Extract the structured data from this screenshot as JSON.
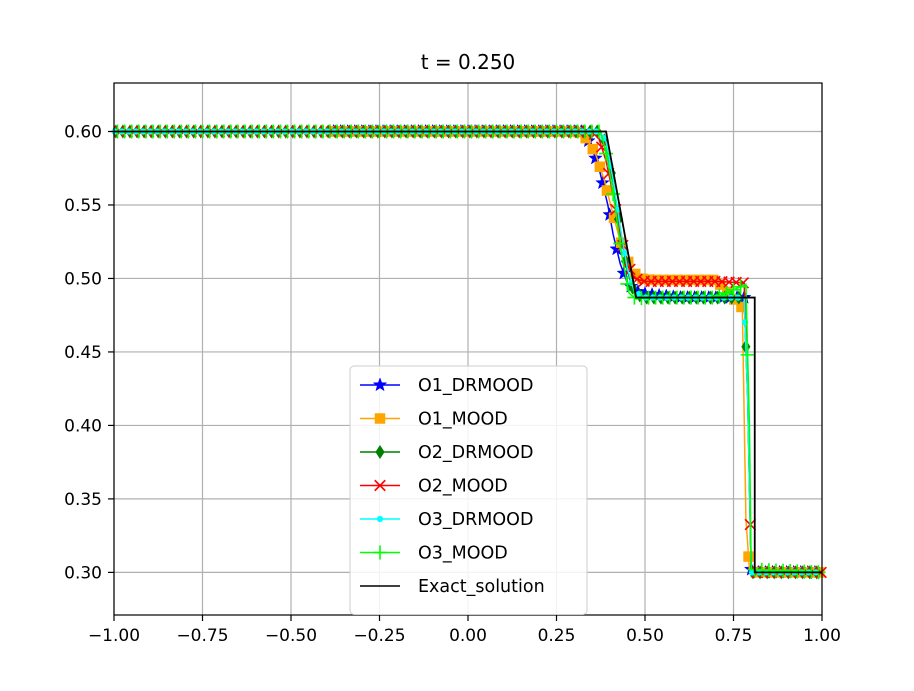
{
  "chart_data": {
    "type": "line",
    "title": "t = 0.250",
    "xlabel": "",
    "ylabel": "",
    "xlim": [
      -1.0,
      1.0
    ],
    "ylim": [
      0.271,
      0.633
    ],
    "xticks": [
      -1.0,
      -0.75,
      -0.5,
      -0.25,
      0.0,
      0.25,
      0.5,
      0.75,
      1.0
    ],
    "xtick_labels": [
      "−1.00",
      "−0.75",
      "−0.50",
      "−0.25",
      "0.00",
      "0.25",
      "0.50",
      "0.75",
      "1.00"
    ],
    "yticks": [
      0.3,
      0.35,
      0.4,
      0.45,
      0.5,
      0.55,
      0.6
    ],
    "ytick_labels": [
      "0.30",
      "0.35",
      "0.40",
      "0.45",
      "0.50",
      "0.55",
      "0.60"
    ],
    "grid": true,
    "legend_position": "lower-center",
    "series": [
      {
        "name": "O1_DRMOOD",
        "color": "#0000ff",
        "marker": "star",
        "x": [
          -0.39,
          0.32,
          0.345,
          0.37,
          0.395,
          0.41,
          0.43,
          0.45,
          0.47,
          0.49,
          0.52,
          0.56,
          0.6,
          0.68,
          0.78,
          0.79,
          0.8,
          0.81,
          1.0
        ],
        "y": [
          0.6,
          0.6,
          0.592,
          0.575,
          0.55,
          0.53,
          0.51,
          0.497,
          0.492,
          0.49,
          0.489,
          0.488,
          0.487,
          0.487,
          0.487,
          0.42,
          0.302,
          0.3,
          0.3
        ]
      },
      {
        "name": "O1_MOOD",
        "color": "#ffa500",
        "marker": "square",
        "x": [
          -0.39,
          0.31,
          0.335,
          0.36,
          0.385,
          0.405,
          0.425,
          0.445,
          0.465,
          0.485,
          0.52,
          0.6,
          0.7,
          0.775,
          0.785,
          0.795,
          0.81,
          1.0
        ],
        "y": [
          0.6,
          0.6,
          0.595,
          0.585,
          0.567,
          0.548,
          0.53,
          0.515,
          0.505,
          0.5,
          0.499,
          0.499,
          0.499,
          0.48,
          0.337,
          0.302,
          0.3,
          0.3
        ]
      },
      {
        "name": "O2_DRMOOD",
        "color": "#008000",
        "marker": "diamond",
        "x": [
          -1.0,
          0.37,
          0.39,
          0.41,
          0.43,
          0.45,
          0.47,
          0.5,
          0.6,
          0.7,
          0.78,
          0.79,
          0.8,
          1.0
        ],
        "y": [
          0.6,
          0.6,
          0.592,
          0.565,
          0.532,
          0.505,
          0.49,
          0.487,
          0.487,
          0.487,
          0.487,
          0.42,
          0.3,
          0.3
        ]
      },
      {
        "name": "O2_MOOD",
        "color": "#ff0000",
        "marker": "x",
        "x": [
          -1.0,
          0.35,
          0.37,
          0.39,
          0.41,
          0.43,
          0.45,
          0.47,
          0.5,
          0.6,
          0.7,
          0.78,
          0.79,
          0.8,
          1.0
        ],
        "y": [
          0.6,
          0.6,
          0.595,
          0.58,
          0.557,
          0.53,
          0.51,
          0.5,
          0.498,
          0.498,
          0.498,
          0.497,
          0.43,
          0.3,
          0.3
        ]
      },
      {
        "name": "O3_DRMOOD",
        "color": "#00ffff",
        "marker": "dot",
        "x": [
          -1.0,
          0.37,
          0.39,
          0.41,
          0.43,
          0.45,
          0.47,
          0.5,
          0.6,
          0.7,
          0.78,
          0.79,
          0.8,
          1.0
        ],
        "y": [
          0.6,
          0.6,
          0.593,
          0.567,
          0.535,
          0.507,
          0.491,
          0.487,
          0.487,
          0.487,
          0.487,
          0.42,
          0.3,
          0.3
        ]
      },
      {
        "name": "O3_MOOD",
        "color": "#00ff00",
        "marker": "plus",
        "x": [
          -1.0,
          0.375,
          0.395,
          0.415,
          0.435,
          0.455,
          0.475,
          0.5,
          0.6,
          0.7,
          0.785,
          0.795,
          0.8,
          1.0
        ],
        "y": [
          0.6,
          0.6,
          0.58,
          0.55,
          0.515,
          0.49,
          0.486,
          0.487,
          0.487,
          0.487,
          0.496,
          0.4,
          0.302,
          0.3
        ]
      },
      {
        "name": "Exact_solution",
        "color": "#000000",
        "marker": "none",
        "x": [
          -1.0,
          0.39,
          0.475,
          0.81,
          0.81,
          1.0
        ],
        "y": [
          0.6,
          0.6,
          0.487,
          0.487,
          0.3,
          0.3
        ]
      }
    ]
  }
}
